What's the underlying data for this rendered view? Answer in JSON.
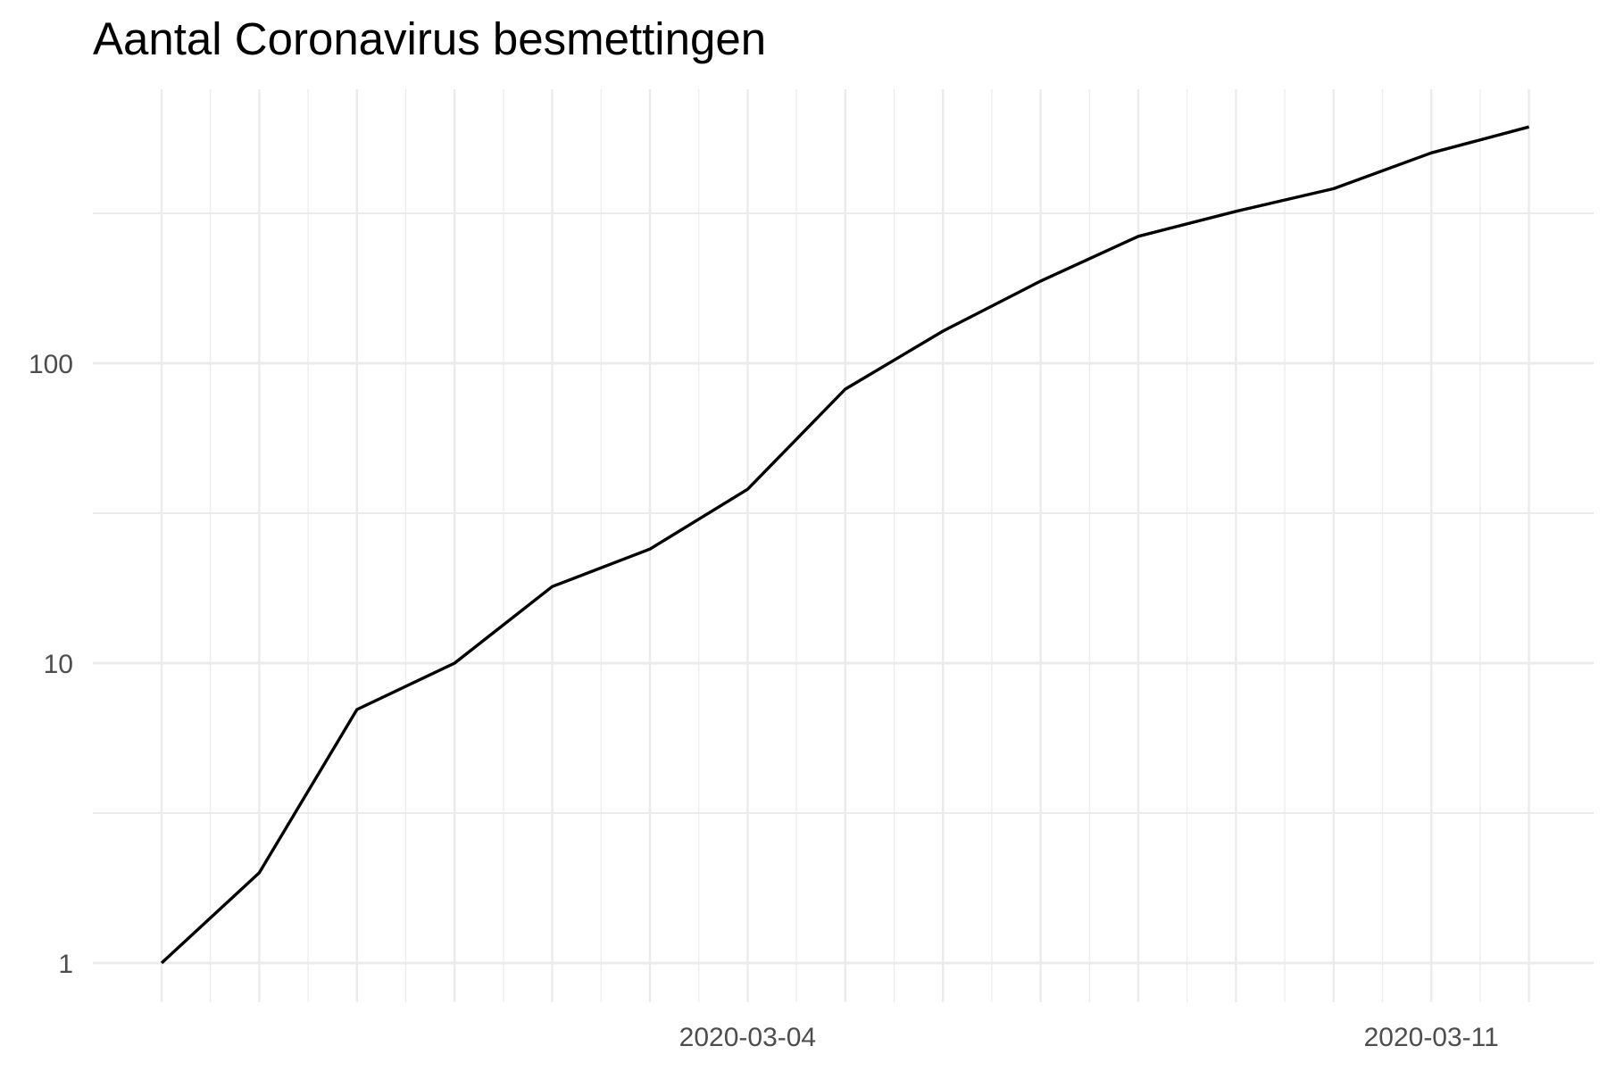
{
  "chart_data": {
    "type": "line",
    "title": "Aantal Coronavirus besmettingen",
    "xlabel": "",
    "ylabel": "",
    "x_scale": "date",
    "y_scale": "log10",
    "x": [
      "2020-02-27",
      "2020-02-28",
      "2020-02-29",
      "2020-03-01",
      "2020-03-02",
      "2020-03-03",
      "2020-03-04",
      "2020-03-05",
      "2020-03-06",
      "2020-03-07",
      "2020-03-08",
      "2020-03-09",
      "2020-03-10",
      "2020-03-11",
      "2020-03-12"
    ],
    "series": [
      {
        "values": [
          1,
          2,
          7,
          10,
          18,
          24,
          38,
          82,
          128,
          188,
          265,
          321,
          382,
          503,
          614
        ]
      }
    ],
    "x_ticks": [
      "2020-03-04",
      "2020-03-11"
    ],
    "y_ticks": [
      1,
      10,
      100
    ],
    "y_tick_labels": [
      "1",
      "10",
      "100"
    ],
    "ylim": [
      0.8,
      1000
    ],
    "grid": true,
    "line_color": "#000000",
    "grid_color": "#ebebeb"
  }
}
